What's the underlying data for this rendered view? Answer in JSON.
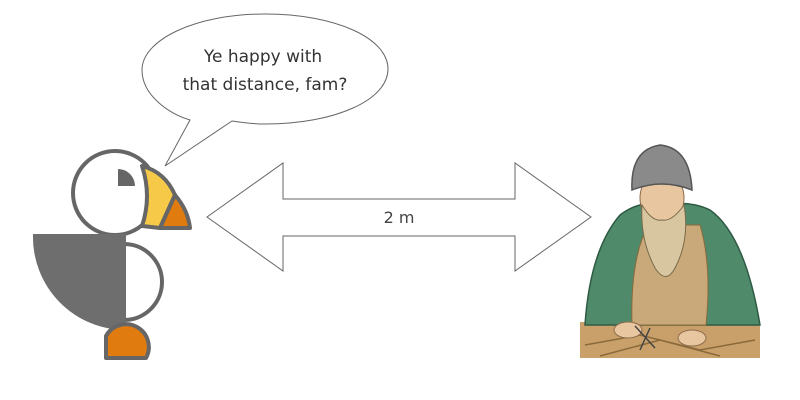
{
  "speech_bubble": {
    "line1": "Ye happy with",
    "line2": "that distance, fam?"
  },
  "distance_arrow": {
    "label": "2 m",
    "fill_color": "#ffffff",
    "stroke_color": "#666666"
  },
  "puffin": {
    "outline_color": "#666666",
    "body_color": "#6e6e6e",
    "beak_yellow": "#f7c948",
    "beak_orange": "#e07b10"
  },
  "portrait": {
    "robe_green": "#4f8a6a",
    "robe_tan": "#c9a97a",
    "hat_gray": "#8a8a8a"
  }
}
